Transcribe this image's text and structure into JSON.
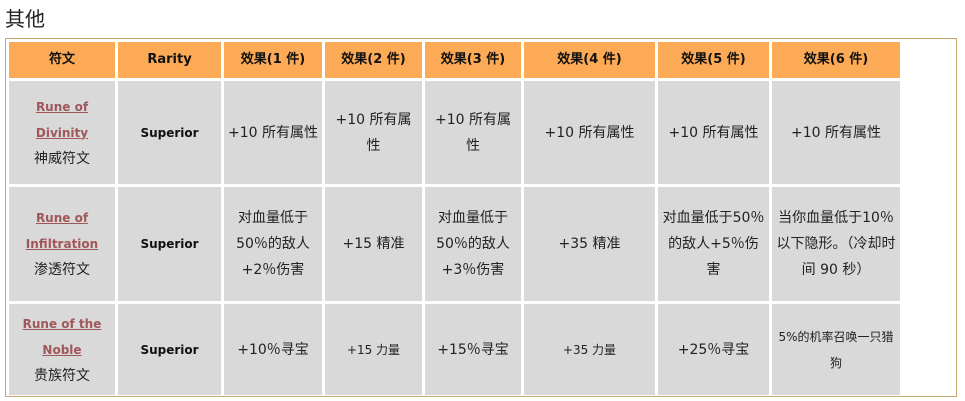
{
  "section_title": "其他",
  "headers": [
    "符文",
    "Rarity",
    "效果(1 件)",
    "效果(2 件)",
    "效果(3 件)",
    "效果(4 件)",
    "效果(5 件)",
    "效果(6 件)"
  ],
  "rows": [
    {
      "rune_en": "Rune of Divinity",
      "rune_cn": "神威符文",
      "rarity": "Superior",
      "effects": [
        "+10 所有属性",
        "+10 所有属性",
        "+10 所有属性",
        "+10 所有属性",
        "+10 所有属性",
        "+10 所有属性"
      ]
    },
    {
      "rune_en": "Rune of Infiltration",
      "rune_cn": "渗透符文",
      "rarity": "Superior",
      "effects": [
        "对血量低于50％的敌人+2％伤害",
        "+15 精准",
        "对血量低于50％的敌人+3％伤害",
        "+35 精准",
        "对血量低于50％的敌人+5％伤害",
        "当你血量低于10％以下隐形。（冷却时间 90 秒）"
      ]
    },
    {
      "rune_en": "Rune of the Noble",
      "rune_cn": "贵族符文",
      "rarity": "Superior",
      "effects": [
        "+10％寻宝",
        "+15 力量",
        "+15％寻宝",
        "+35 力量",
        "+25％寻宝",
        "5%的机率召唤一只猎狗"
      ]
    }
  ],
  "colors": {
    "header_bg": "#fcaa56",
    "cell_bg": "#d9d9d9",
    "link": "#a0575a"
  }
}
